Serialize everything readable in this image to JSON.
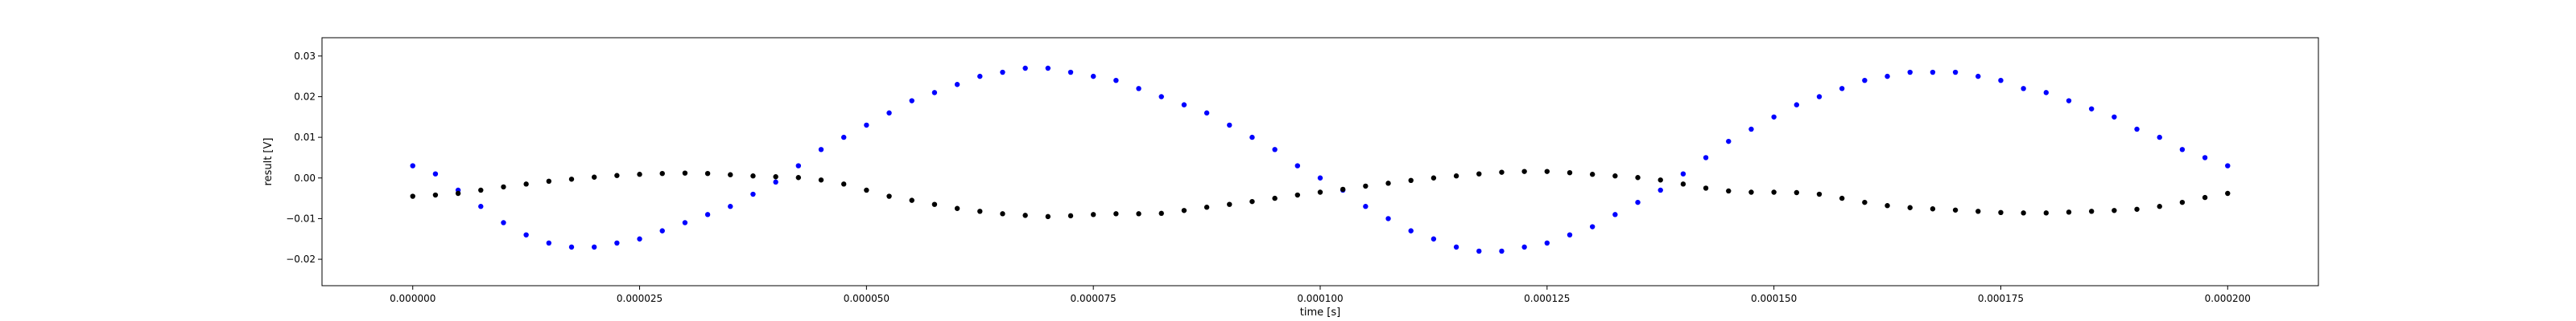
{
  "chart_data": {
    "type": "scatter",
    "xlabel": "time [s]",
    "ylabel": "result [V]",
    "xlim": [
      -1e-05,
      0.00021
    ],
    "ylim": [
      -0.0265,
      0.0345
    ],
    "xticks": [
      {
        "value": 0.0,
        "label": "0.000000"
      },
      {
        "value": 2.5e-05,
        "label": "0.000025"
      },
      {
        "value": 5e-05,
        "label": "0.000050"
      },
      {
        "value": 7.5e-05,
        "label": "0.000075"
      },
      {
        "value": 0.0001,
        "label": "0.000100"
      },
      {
        "value": 0.000125,
        "label": "0.000125"
      },
      {
        "value": 0.00015,
        "label": "0.000150"
      },
      {
        "value": 0.000175,
        "label": "0.000175"
      },
      {
        "value": 0.0002,
        "label": "0.000200"
      }
    ],
    "yticks": [
      {
        "value": -0.02,
        "label": "−0.02"
      },
      {
        "value": -0.01,
        "label": "−0.01"
      },
      {
        "value": 0.0,
        "label": "0.00"
      },
      {
        "value": 0.01,
        "label": "0.01"
      },
      {
        "value": 0.02,
        "label": "0.02"
      },
      {
        "value": 0.03,
        "label": "0.03"
      }
    ],
    "grid": false,
    "legend": "none",
    "colors": {
      "series_1": "#0000ff",
      "series_2": "#000000"
    },
    "series": [
      {
        "color": "#0000ff",
        "x": [
          0.0,
          2.5e-06,
          5e-06,
          7.5e-06,
          1e-05,
          1.25e-05,
          1.5e-05,
          1.75e-05,
          2e-05,
          2.25e-05,
          2.5e-05,
          2.75e-05,
          3e-05,
          3.25e-05,
          3.5e-05,
          3.75e-05,
          4e-05,
          4.25e-05,
          4.5e-05,
          4.75e-05,
          5e-05,
          5.25e-05,
          5.5e-05,
          5.75e-05,
          6e-05,
          6.25e-05,
          6.5e-05,
          6.75e-05,
          7e-05,
          7.25e-05,
          7.5e-05,
          7.75e-05,
          8e-05,
          8.25e-05,
          8.5e-05,
          8.75e-05,
          9e-05,
          9.25e-05,
          9.5e-05,
          9.75e-05,
          0.0001,
          0.0001025,
          0.000105,
          0.0001075,
          0.00011,
          0.0001125,
          0.000115,
          0.0001175,
          0.00012,
          0.0001225,
          0.000125,
          0.0001275,
          0.00013,
          0.0001325,
          0.000135,
          0.0001375,
          0.00014,
          0.0001425,
          0.000145,
          0.0001475,
          0.00015,
          0.0001525,
          0.000155,
          0.0001575,
          0.00016,
          0.0001625,
          0.000165,
          0.0001675,
          0.00017,
          0.0001725,
          0.000175,
          0.0001775,
          0.00018,
          0.0001825,
          0.000185,
          0.0001875,
          0.00019,
          0.0001925,
          0.000195,
          0.0001975,
          0.0002
        ],
        "y": [
          0.003,
          0.001,
          -0.003,
          -0.007,
          -0.011,
          -0.014,
          -0.016,
          -0.017,
          -0.017,
          -0.016,
          -0.015,
          -0.013,
          -0.011,
          -0.009,
          -0.007,
          -0.004,
          -0.001,
          0.003,
          0.007,
          0.01,
          0.013,
          0.016,
          0.019,
          0.021,
          0.023,
          0.025,
          0.026,
          0.027,
          0.027,
          0.026,
          0.025,
          0.024,
          0.022,
          0.02,
          0.018,
          0.016,
          0.013,
          0.01,
          0.007,
          0.003,
          0.0,
          -0.003,
          -0.007,
          -0.01,
          -0.013,
          -0.015,
          -0.017,
          -0.018,
          -0.018,
          -0.017,
          -0.016,
          -0.014,
          -0.012,
          -0.009,
          -0.006,
          -0.003,
          0.001,
          0.005,
          0.009,
          0.012,
          0.015,
          0.018,
          0.02,
          0.022,
          0.024,
          0.025,
          0.026,
          0.026,
          0.026,
          0.025,
          0.024,
          0.022,
          0.021,
          0.019,
          0.017,
          0.015,
          0.012,
          0.01,
          0.007,
          0.005,
          0.003
        ]
      },
      {
        "color": "#000000",
        "x": [
          0.0,
          2.5e-06,
          5e-06,
          7.5e-06,
          1e-05,
          1.25e-05,
          1.5e-05,
          1.75e-05,
          2e-05,
          2.25e-05,
          2.5e-05,
          2.75e-05,
          3e-05,
          3.25e-05,
          3.5e-05,
          3.75e-05,
          4e-05,
          4.25e-05,
          4.5e-05,
          4.75e-05,
          5e-05,
          5.25e-05,
          5.5e-05,
          5.75e-05,
          6e-05,
          6.25e-05,
          6.5e-05,
          6.75e-05,
          7e-05,
          7.25e-05,
          7.5e-05,
          7.75e-05,
          8e-05,
          8.25e-05,
          8.5e-05,
          8.75e-05,
          9e-05,
          9.25e-05,
          9.5e-05,
          9.75e-05,
          0.0001,
          0.0001025,
          0.000105,
          0.0001075,
          0.00011,
          0.0001125,
          0.000115,
          0.0001175,
          0.00012,
          0.0001225,
          0.000125,
          0.0001275,
          0.00013,
          0.0001325,
          0.000135,
          0.0001375,
          0.00014,
          0.0001425,
          0.000145,
          0.0001475,
          0.00015,
          0.0001525,
          0.000155,
          0.0001575,
          0.00016,
          0.0001625,
          0.000165,
          0.0001675,
          0.00017,
          0.0001725,
          0.000175,
          0.0001775,
          0.00018,
          0.0001825,
          0.000185,
          0.0001875,
          0.00019,
          0.0001925,
          0.000195,
          0.0001975,
          0.0002
        ],
        "y": [
          -0.0045,
          -0.0042,
          -0.0038,
          -0.003,
          -0.0022,
          -0.0015,
          -0.0008,
          -0.0003,
          0.0002,
          0.0006,
          0.0009,
          0.0011,
          0.0012,
          0.0011,
          0.0008,
          0.0005,
          0.0003,
          0.0001,
          -0.0005,
          -0.0015,
          -0.003,
          -0.0045,
          -0.0055,
          -0.0065,
          -0.0075,
          -0.0082,
          -0.0088,
          -0.0092,
          -0.0095,
          -0.0093,
          -0.009,
          -0.0088,
          -0.0088,
          -0.0087,
          -0.008,
          -0.0072,
          -0.0065,
          -0.0058,
          -0.005,
          -0.0042,
          -0.0035,
          -0.0028,
          -0.002,
          -0.0013,
          -0.0006,
          0.0,
          0.0005,
          0.001,
          0.0014,
          0.0016,
          0.0016,
          0.0013,
          0.0009,
          0.0005,
          0.0001,
          -0.0005,
          -0.0015,
          -0.0025,
          -0.0032,
          -0.0035,
          -0.0035,
          -0.0036,
          -0.004,
          -0.005,
          -0.006,
          -0.0068,
          -0.0073,
          -0.0076,
          -0.0079,
          -0.0082,
          -0.0085,
          -0.0086,
          -0.0086,
          -0.0084,
          -0.0082,
          -0.008,
          -0.0077,
          -0.007,
          -0.006,
          -0.0048,
          -0.0038
        ]
      }
    ]
  }
}
